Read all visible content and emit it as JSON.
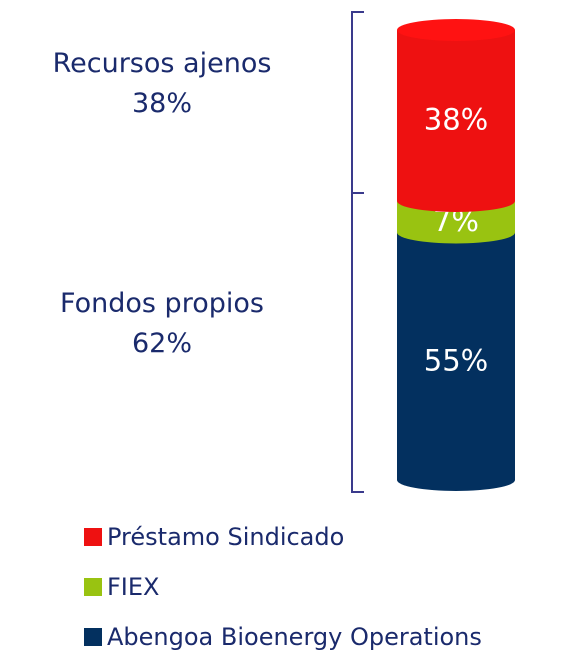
{
  "chart_data": {
    "type": "bar",
    "stacked": true,
    "shape": "cylinder",
    "categories": [
      null
    ],
    "series": [
      {
        "name": "Préstamo Sindicado",
        "color": "#ee1111",
        "values": [
          38
        ],
        "value_labels": [
          "38%"
        ]
      },
      {
        "name": "FIEX",
        "color": "#99c311",
        "values": [
          7
        ],
        "value_labels": [
          "7%"
        ]
      },
      {
        "name": "Abengoa Bioenergy Operations",
        "color": "#03305f",
        "values": [
          55
        ],
        "value_labels": [
          "55%"
        ]
      }
    ],
    "groups": [
      {
        "name": "Recursos ajenos",
        "value": 38,
        "value_label": "38%"
      },
      {
        "name": "Fondos propios",
        "value": 62,
        "value_label": "62%"
      }
    ],
    "ylim": [
      0,
      100
    ],
    "legend": "bottom-left"
  }
}
